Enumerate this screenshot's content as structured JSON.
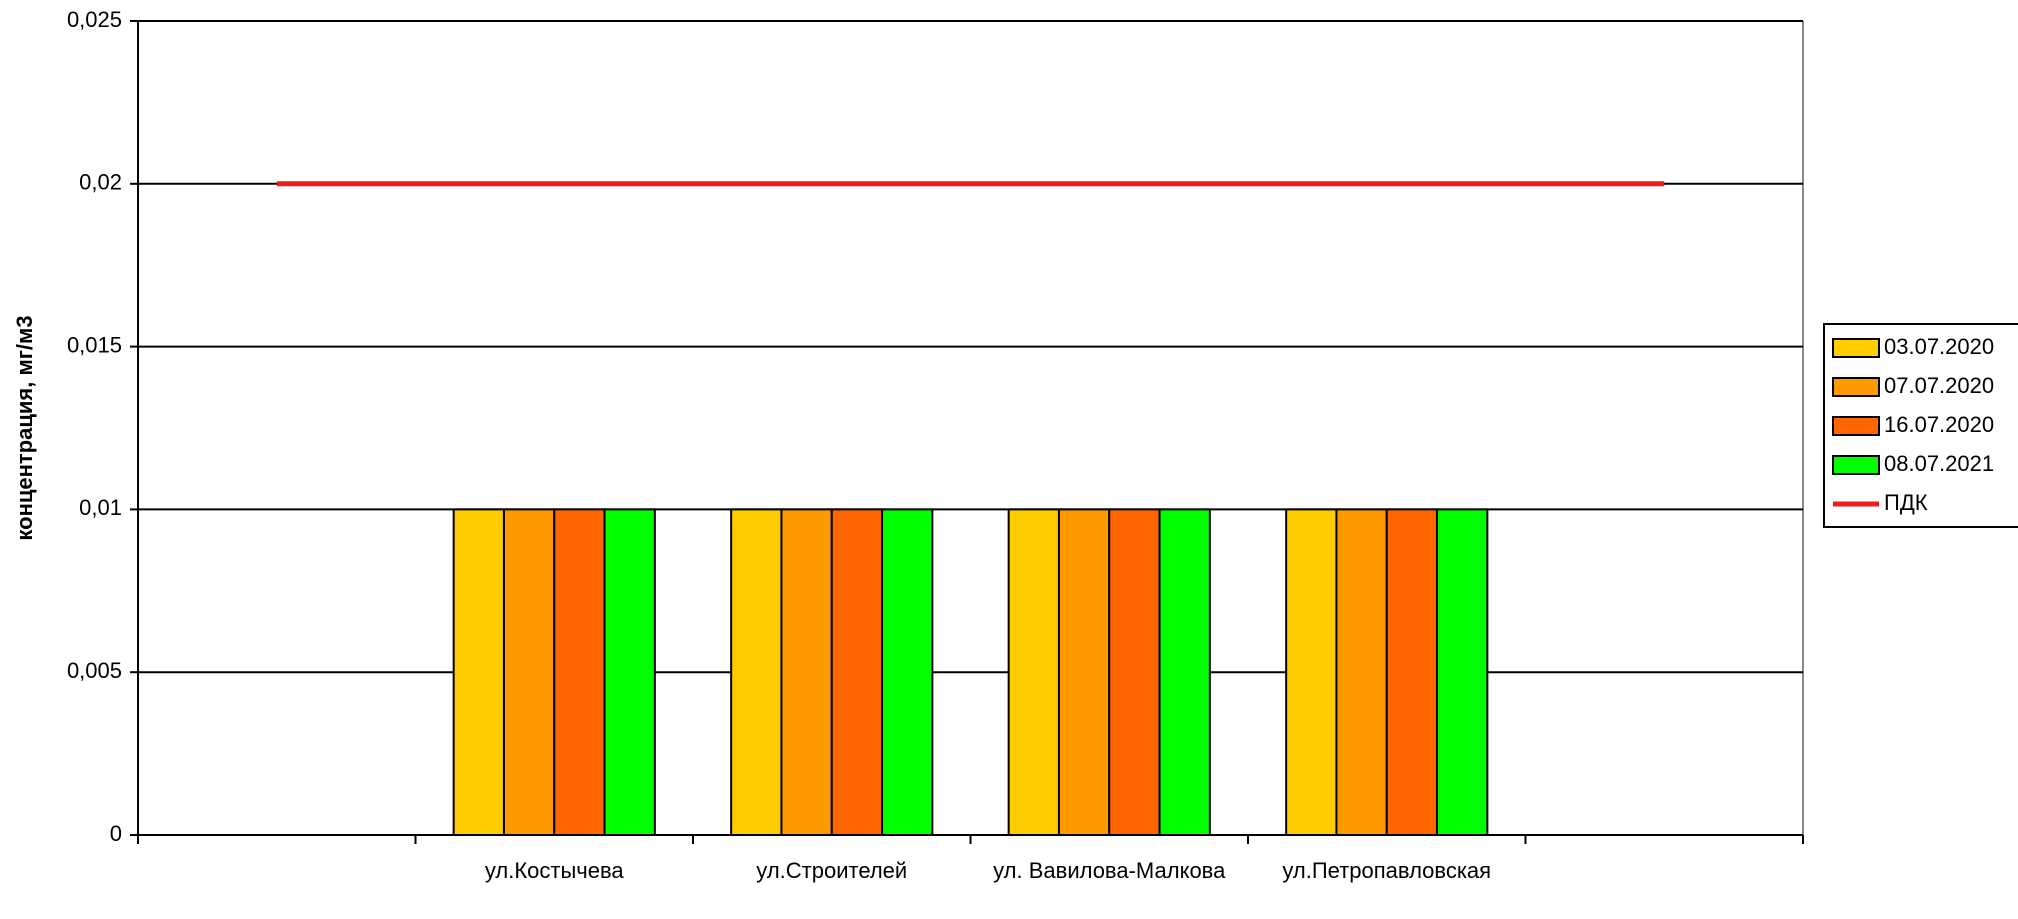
{
  "chart_data": {
    "type": "bar",
    "y_label": "концентрация, мг/м3",
    "categories": [
      null,
      "ул.Костычева",
      "ул.Строителей",
      "ул. Вавилова-Малкова",
      "ул.Петропавловская",
      null
    ],
    "series": [
      {
        "name": "03.07.2020",
        "color": "#FFCC00",
        "values": [
          null,
          0.01,
          0.01,
          0.01,
          0.01,
          null
        ]
      },
      {
        "name": "07.07.2020",
        "color": "#FF9900",
        "values": [
          null,
          0.01,
          0.01,
          0.01,
          0.01,
          null
        ]
      },
      {
        "name": "16.07.2020",
        "color": "#FF6600",
        "values": [
          null,
          0.01,
          0.01,
          0.01,
          0.01,
          null
        ]
      },
      {
        "name": "08.07.2021",
        "color": "#00FF00",
        "values": [
          null,
          0.01,
          0.01,
          0.01,
          0.01,
          null
        ]
      },
      {
        "name": "ПДК",
        "color": "#EE1C1C",
        "type": "line",
        "values": [
          0.02,
          0.02,
          0.02,
          0.02,
          0.02,
          0.02
        ]
      }
    ],
    "ylim": [
      0,
      0.025
    ],
    "yticks": [
      0,
      {
        "value": 0.005,
        "label": "0,005"
      },
      {
        "value": 0.01,
        "label": "0,01"
      },
      {
        "value": 0.015,
        "label": "0,015"
      },
      {
        "value": 0.02,
        "label": "0,02"
      },
      {
        "value": 0.025,
        "label": "0,025"
      }
    ],
    "grid": true,
    "legend": "right"
  }
}
